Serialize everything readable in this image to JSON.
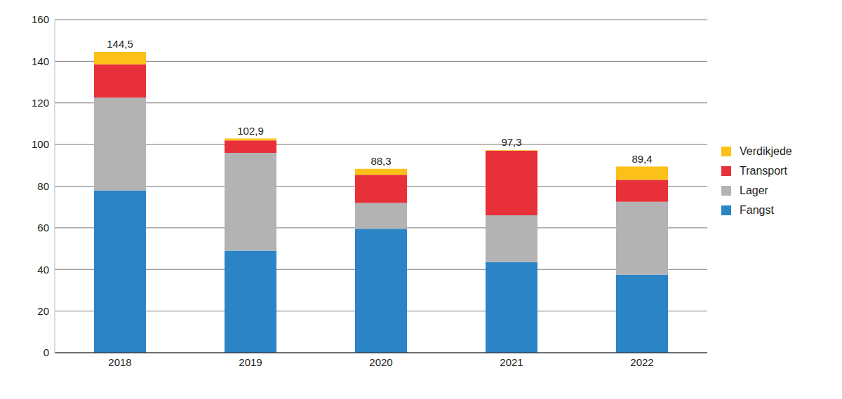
{
  "chart_data": {
    "type": "bar",
    "stacked": true,
    "grid": true,
    "legend": "right",
    "categories": [
      "2018",
      "2019",
      "2020",
      "2021",
      "2022"
    ],
    "series": [
      {
        "name": "Fangst",
        "color": "#2a84c6",
        "values": [
          78,
          49,
          59.5,
          43.5,
          37.5
        ]
      },
      {
        "name": "Lager",
        "color": "#b3b3b3",
        "values": [
          44.5,
          47,
          12.5,
          22.5,
          35
        ]
      },
      {
        "name": "Transport",
        "color": "#e8303a",
        "values": [
          16,
          6,
          13.5,
          31,
          10.5
        ]
      },
      {
        "name": "Verdikjede",
        "color": "#fcc118",
        "values": [
          6,
          0.9,
          2.8,
          0.3,
          6.4
        ]
      }
    ],
    "totals": [
      144.5,
      102.9,
      88.3,
      97.3,
      89.4
    ],
    "total_labels": [
      "144,5",
      "102,9",
      "88,3",
      "97,3",
      "89,4"
    ],
    "ylim": [
      0,
      160
    ],
    "yticks": [
      0,
      20,
      40,
      60,
      80,
      100,
      120,
      140,
      160
    ]
  }
}
